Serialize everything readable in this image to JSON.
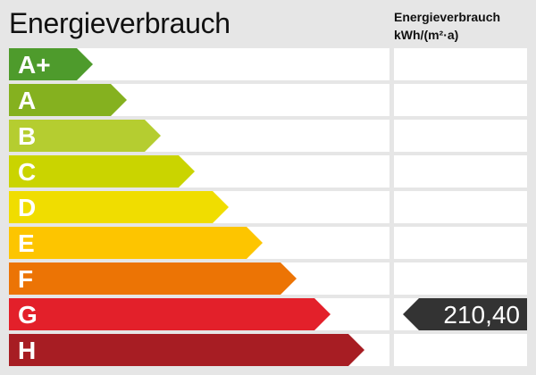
{
  "title": "Energieverbrauch",
  "column_header": {
    "line1": "Energieverbrauch",
    "line2": "kWh/(m²·a)"
  },
  "chart_data": {
    "type": "bar",
    "title": "Energieverbrauch",
    "categories": [
      "A+",
      "A",
      "B",
      "C",
      "D",
      "E",
      "F",
      "G",
      "H"
    ],
    "colors": [
      "#4e9b2c",
      "#85b11f",
      "#b5cd30",
      "#cad400",
      "#f0dd00",
      "#fdc500",
      "#ec7405",
      "#e3202a",
      "#a71d23"
    ],
    "unit": "kWh/(m²·a)",
    "value": "210,40",
    "value_class": "G",
    "value_color": "#333333"
  }
}
